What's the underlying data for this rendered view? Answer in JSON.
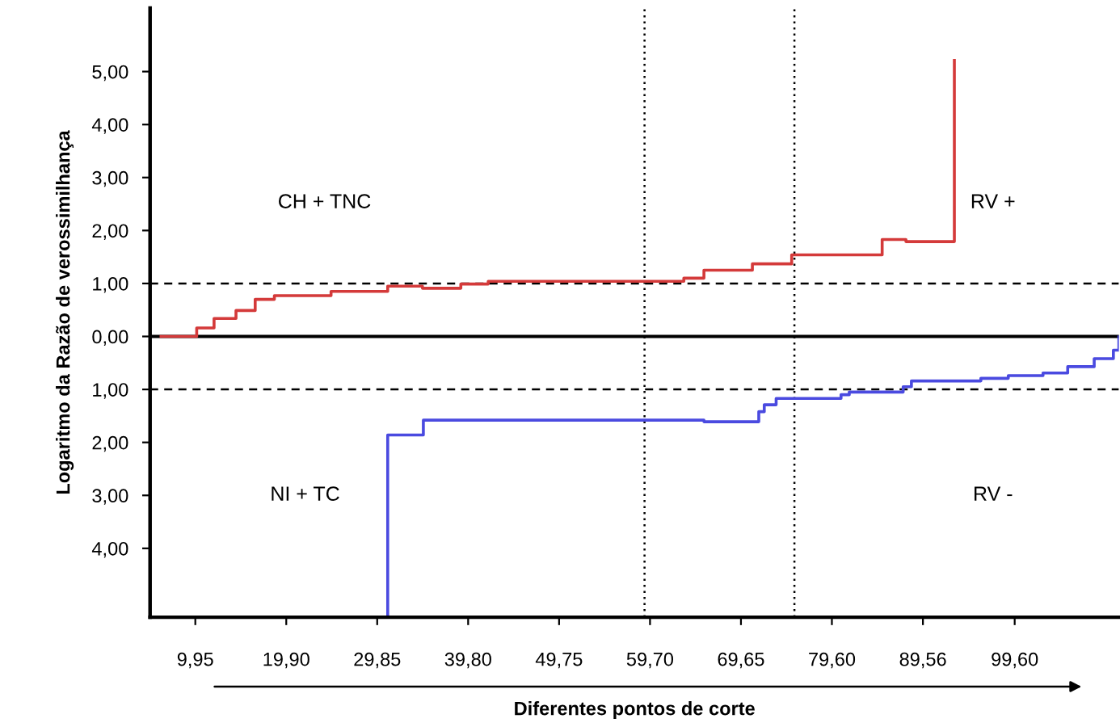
{
  "chart_data": {
    "type": "step",
    "xlabel": "Diferentes pontos de corte",
    "ylabel": "Logaritmo da Razão de verossimilhança",
    "series": [
      {
        "color": "#d43a3a",
        "x": [
          6.2,
          10.1,
          12.0,
          14.4,
          16.5,
          18.6,
          24.8,
          31.0,
          34.8,
          39.0,
          42.0,
          63.4,
          65.6,
          70.9,
          75.2,
          85.1,
          87.7,
          93.0
        ],
        "values": [
          0.0,
          0.16,
          0.34,
          0.49,
          0.7,
          0.77,
          0.85,
          0.95,
          0.91,
          0.99,
          1.04,
          1.1,
          1.25,
          1.37,
          1.54,
          1.83,
          1.79,
          5.21
        ]
      },
      {
        "color": "#4a4ae0",
        "x": [
          31.0,
          31.0,
          34.9,
          65.6,
          71.6,
          72.2,
          73.5,
          80.6,
          81.5,
          87.4,
          88.3,
          95.9,
          98.9,
          102.7,
          105.4,
          108.3,
          110.4,
          111.0
        ],
        "values": [
          -5.3,
          -1.86,
          -1.58,
          -1.61,
          -1.42,
          -1.29,
          -1.17,
          -1.1,
          -1.05,
          -0.95,
          -0.84,
          -0.79,
          -0.74,
          -0.69,
          -0.57,
          -0.42,
          -0.26,
          -0.01
        ]
      }
    ],
    "xlim": [
      5.0,
      111.0
    ],
    "xticks": [
      {
        "value": 9.95,
        "label": "9,95"
      },
      {
        "value": 19.9,
        "label": "19,90"
      },
      {
        "value": 29.85,
        "label": "29,85"
      },
      {
        "value": 39.8,
        "label": "39,80"
      },
      {
        "value": 49.75,
        "label": "49,75"
      },
      {
        "value": 59.7,
        "label": "59,70"
      },
      {
        "value": 69.65,
        "label": "69,65"
      },
      {
        "value": 79.6,
        "label": "79,60"
      },
      {
        "value": 89.56,
        "label": "89,56"
      },
      {
        "value": 99.6,
        "label": "99,60"
      }
    ],
    "ylim": [
      -5.3,
      6.2
    ],
    "yticks": [
      {
        "value": -4,
        "label": "4,00"
      },
      {
        "value": -3,
        "label": "3,00"
      },
      {
        "value": -2,
        "label": "2,00"
      },
      {
        "value": -1,
        "label": "1,00"
      },
      {
        "value": 0,
        "label": "0,00"
      },
      {
        "value": 1,
        "label": "1,00"
      },
      {
        "value": 2,
        "label": "2,00"
      },
      {
        "value": 3,
        "label": "3,00"
      },
      {
        "value": 4,
        "label": "4,00"
      },
      {
        "value": 5,
        "label": "5,00"
      }
    ],
    "ref_lines": [
      {
        "axis": "y",
        "value": 0,
        "color": "#000000",
        "line_style": "solid"
      },
      {
        "axis": "y",
        "value": 1,
        "color": "#000000",
        "line_style": "dashed"
      },
      {
        "axis": "y",
        "value": -1,
        "color": "#000000",
        "line_style": "dashed"
      },
      {
        "axis": "x",
        "value": 59.1,
        "color": "#000000",
        "line_style": "dotted"
      },
      {
        "axis": "x",
        "value": 75.5,
        "color": "#000000",
        "line_style": "dotted"
      }
    ],
    "annotations": [
      "CH + TNC",
      "RV +",
      "NI + TC",
      "RV -"
    ],
    "grid": false,
    "legend": false,
    "marker": "none",
    "line_style": "solid"
  }
}
